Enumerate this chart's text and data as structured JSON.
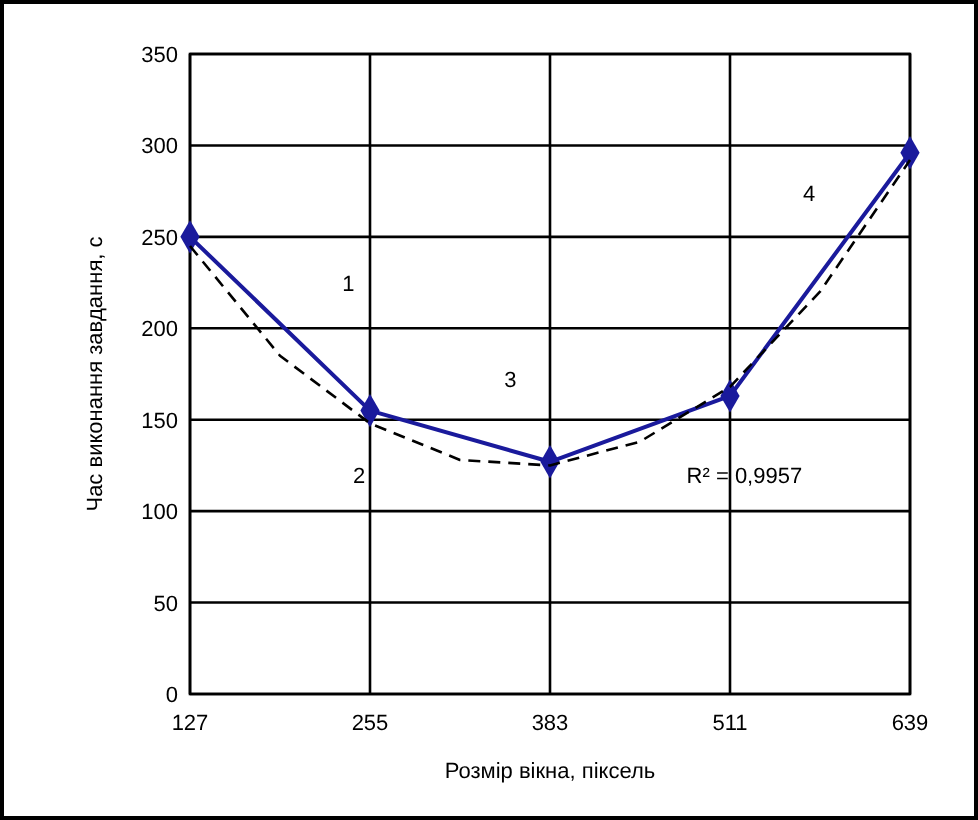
{
  "chart_data": {
    "type": "line",
    "xlabel": "Розмір вікна, піксель",
    "ylabel": "Час виконання завдання, с",
    "xlim": [
      127,
      639
    ],
    "xticks": [
      127,
      255,
      383,
      511,
      639
    ],
    "ylim": [
      0,
      350
    ],
    "yticks": [
      0,
      50,
      100,
      150,
      200,
      250,
      300,
      350
    ],
    "grid": true,
    "series": [
      {
        "color": "#1a1a9c",
        "x": [
          127,
          255,
          383,
          511,
          639
        ],
        "values": [
          250,
          155,
          127,
          163,
          296
        ],
        "marker": "diamond",
        "line_style": "solid"
      },
      {
        "type": "line",
        "color": "#000000",
        "x": [
          127,
          191,
          255,
          319,
          383,
          447,
          511,
          575,
          639
        ],
        "values": [
          245,
          185,
          148,
          128,
          125,
          138,
          168,
          220,
          292
        ],
        "marker": "none",
        "line_style": "dashed"
      }
    ],
    "annotations": [
      "1",
      "2",
      "3",
      "4",
      "R² = 0,9957"
    ]
  }
}
